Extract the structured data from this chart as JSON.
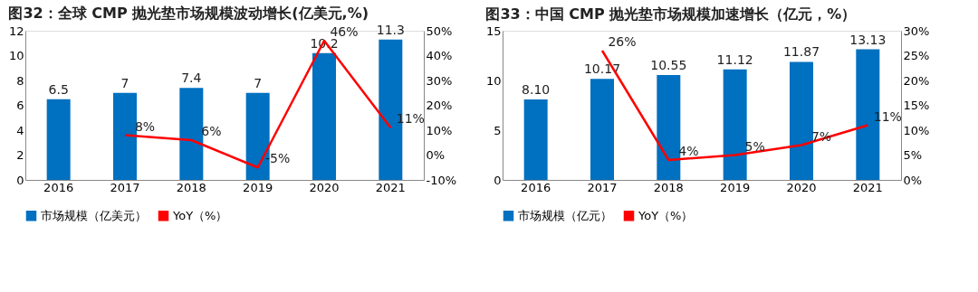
{
  "chart_data": [
    {
      "type": "bar",
      "title": "图32：全球 CMP 抛光垫市场规模波动增长(亿美元,%)",
      "categories": [
        "2016",
        "2017",
        "2018",
        "2019",
        "2020",
        "2021"
      ],
      "series": [
        {
          "name": "市场规模（亿美元）",
          "color": "#0070c0",
          "values": [
            6.5,
            7,
            7.4,
            7,
            10.2,
            11.3
          ]
        },
        {
          "name": "YoY（%）",
          "type": "line",
          "axis": "y2",
          "color": "#ff0000",
          "values": [
            null,
            8,
            6,
            -5,
            46,
            11
          ],
          "value_labels": [
            null,
            "8%",
            "6%",
            "-5%",
            "46%",
            "11%"
          ]
        }
      ],
      "ylim": [
        0,
        12
      ],
      "yticks": [
        0,
        2,
        4,
        6,
        8,
        10,
        12
      ],
      "y2lim": [
        -10,
        50
      ],
      "y2ticks": [
        {
          "value": -10,
          "label": "-10%"
        },
        {
          "value": 0,
          "label": "0%"
        },
        {
          "value": 10,
          "label": "10%"
        },
        {
          "value": 20,
          "label": "20%"
        },
        {
          "value": 30,
          "label": "30%"
        },
        {
          "value": 40,
          "label": "40%"
        },
        {
          "value": 50,
          "label": "50%"
        }
      ],
      "data_labels": true,
      "legend": "bottom",
      "grid": false
    },
    {
      "type": "bar",
      "title": "图33：中国 CMP 抛光垫市场规模加速增长（亿元，%）",
      "categories": [
        "2016",
        "2017",
        "2018",
        "2019",
        "2020",
        "2021"
      ],
      "series": [
        {
          "name": "市场规模（亿元）",
          "color": "#0070c0",
          "values": [
            8.1,
            10.17,
            10.55,
            11.12,
            11.87,
            13.13
          ],
          "value_labels": [
            "8.10",
            "10.17",
            "10.55",
            "11.12",
            "11.87",
            "13.13"
          ]
        },
        {
          "name": "YoY（%）",
          "type": "line",
          "axis": "y2",
          "color": "#ff0000",
          "values": [
            null,
            26,
            4,
            5,
            7,
            11
          ],
          "value_labels": [
            null,
            "26%",
            "4%",
            "5%",
            "7%",
            "11%"
          ]
        }
      ],
      "ylim": [
        0,
        15
      ],
      "yticks": [
        0,
        5,
        10,
        15
      ],
      "y2lim": [
        0,
        30
      ],
      "y2ticks": [
        {
          "value": 0,
          "label": "0%"
        },
        {
          "value": 5,
          "label": "5%"
        },
        {
          "value": 10,
          "label": "10%"
        },
        {
          "value": 15,
          "label": "15%"
        },
        {
          "value": 20,
          "label": "20%"
        },
        {
          "value": 25,
          "label": "25%"
        },
        {
          "value": 30,
          "label": "30%"
        }
      ],
      "legend": "bottom",
      "grid": false
    }
  ]
}
